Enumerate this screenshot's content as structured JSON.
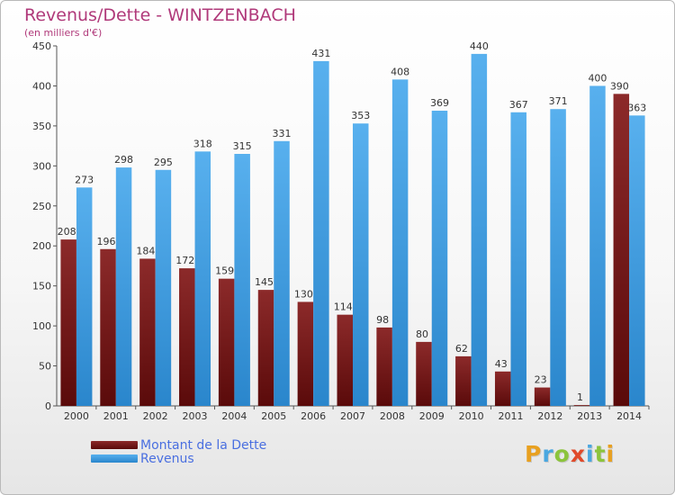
{
  "header": {
    "title": "Revenus/Dette - WINTZENBACH",
    "subtitle": "(en milliers d'€)"
  },
  "chart_data": {
    "type": "bar",
    "categories": [
      "2000",
      "2001",
      "2002",
      "2003",
      "2004",
      "2005",
      "2006",
      "2007",
      "2008",
      "2009",
      "2010",
      "2011",
      "2012",
      "2013",
      "2014"
    ],
    "series": [
      {
        "name": "Montant de la Dette",
        "color": "#7a1a1a",
        "values": [
          208,
          196,
          184,
          172,
          159,
          145,
          130,
          114,
          98,
          80,
          62,
          43,
          23,
          1,
          390
        ]
      },
      {
        "name": "Revenus",
        "color": "#3b9be0",
        "values": [
          273,
          298,
          295,
          318,
          315,
          331,
          431,
          353,
          408,
          369,
          440,
          367,
          371,
          400,
          363
        ]
      }
    ],
    "y_ticks": [
      0,
      50,
      100,
      150,
      200,
      250,
      300,
      350,
      400,
      450
    ],
    "ylim": [
      0,
      450
    ],
    "grid": false,
    "legend_position": "bottom-left"
  },
  "legend": {
    "items": [
      {
        "label": "Montant de la Dette",
        "color": "#6e1a1a"
      },
      {
        "label": "Revenus",
        "color": "#3b9be0"
      }
    ]
  },
  "logo": {
    "text": "Proxiti"
  }
}
